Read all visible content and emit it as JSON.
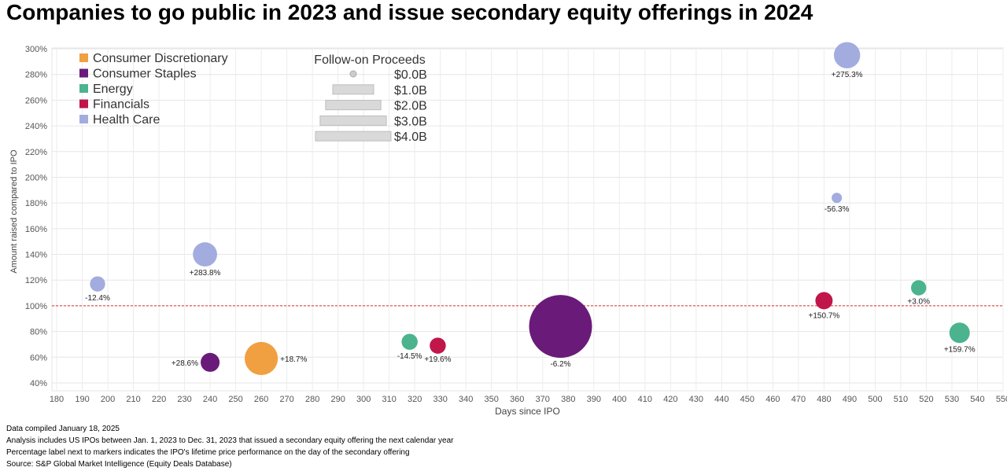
{
  "chart_data": {
    "type": "scatter",
    "title": "Companies to go public in 2023 and issue secondary equity offerings in 2024",
    "xlabel": "Days since IPO",
    "ylabel": "Amount raised compared to IPO",
    "xlim": [
      180,
      550
    ],
    "ylim": [
      40,
      300
    ],
    "x_ticks": [
      "180",
      "190",
      "200",
      "210",
      "220",
      "230",
      "240",
      "250",
      "260",
      "270",
      "280",
      "290",
      "300",
      "310",
      "320",
      "330",
      "340",
      "350",
      "360",
      "370",
      "380",
      "390",
      "400",
      "410",
      "420",
      "430",
      "440",
      "450",
      "460",
      "470",
      "480",
      "490",
      "500",
      "510",
      "520",
      "530",
      "540",
      "550"
    ],
    "y_ticks": [
      "40%",
      "60%",
      "80%",
      "100%",
      "120%",
      "140%",
      "160%",
      "180%",
      "200%",
      "220%",
      "240%",
      "260%",
      "280%",
      "300%"
    ],
    "reference_line_y": 100,
    "grid": true,
    "legend": {
      "placement": "top-left",
      "sectors": [
        {
          "name": "Consumer Discretionary",
          "color": "#f0a040"
        },
        {
          "name": "Consumer Staples",
          "color": "#6a1b7a"
        },
        {
          "name": "Energy",
          "color": "#4cb38f"
        },
        {
          "name": "Financials",
          "color": "#c0164a"
        },
        {
          "name": "Health Care",
          "color": "#a3acdf"
        }
      ],
      "size_title": "Follow-on Proceeds",
      "size_labels": [
        "$0.0B",
        "$1.0B",
        "$2.0B",
        "$3.0B",
        "$4.0B"
      ]
    },
    "points": [
      {
        "x": 196,
        "y": 117,
        "sector": "Health Care",
        "proceeds_b": 0.1,
        "label": "-12.4%"
      },
      {
        "x": 238,
        "y": 140,
        "sector": "Health Care",
        "proceeds_b": 0.4,
        "label": "+283.8%"
      },
      {
        "x": 240,
        "y": 56,
        "sector": "Consumer Staples",
        "proceeds_b": 0.2,
        "label": "+28.6%"
      },
      {
        "x": 260,
        "y": 59,
        "sector": "Consumer Discretionary",
        "proceeds_b": 0.9,
        "label": "+18.7%"
      },
      {
        "x": 318,
        "y": 72,
        "sector": "Energy",
        "proceeds_b": 0.12,
        "label": "-14.5%"
      },
      {
        "x": 329,
        "y": 69,
        "sector": "Financials",
        "proceeds_b": 0.12,
        "label": "+19.6%"
      },
      {
        "x": 377,
        "y": 84,
        "sector": "Consumer Staples",
        "proceeds_b": 4.0,
        "label": "-6.2%"
      },
      {
        "x": 480,
        "y": 104,
        "sector": "Financials",
        "proceeds_b": 0.15,
        "label": "+150.7%"
      },
      {
        "x": 485,
        "y": 184,
        "sector": "Health Care",
        "proceeds_b": 0.02,
        "label": "-56.3%"
      },
      {
        "x": 489,
        "y": 295,
        "sector": "Health Care",
        "proceeds_b": 0.5,
        "label": "+275.3%"
      },
      {
        "x": 517,
        "y": 114,
        "sector": "Energy",
        "proceeds_b": 0.1,
        "label": "+3.0%"
      },
      {
        "x": 533,
        "y": 79,
        "sector": "Energy",
        "proceeds_b": 0.25,
        "label": "+159.7%"
      }
    ]
  },
  "notes": [
    "Data compiled January 18, 2025",
    "Analysis includes US IPOs between Jan. 1, 2023 to Dec. 31, 2023 that issued a secondary equity offering the next calendar year",
    "Percentage label next to markers indicates the IPO's lifetime price performance on the day of the secondary offering",
    "Source: S&P Global Market Intelligence (Equity Deals Database)"
  ]
}
